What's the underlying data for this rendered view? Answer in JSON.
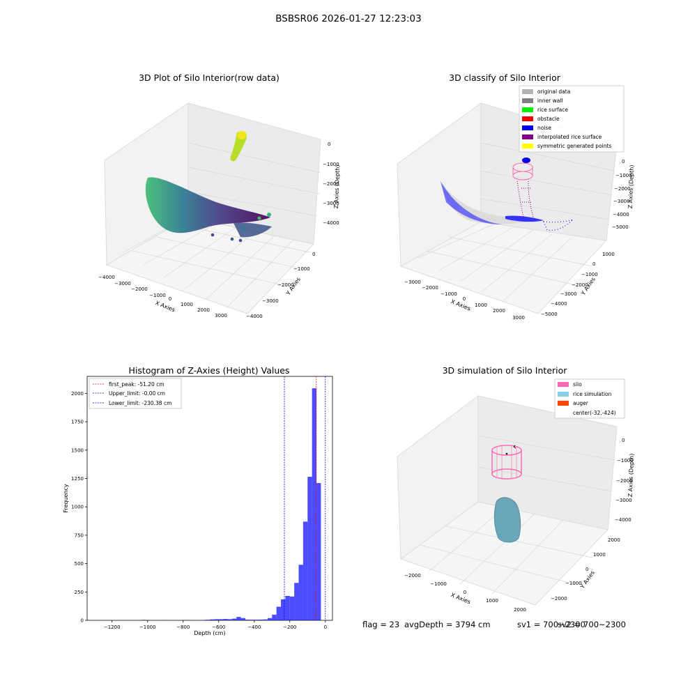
{
  "figure": {
    "suptitle": "BSBSR06 2026-01-27 12:23:03",
    "footer": {
      "flag": "flag = 23",
      "avg_depth": "avgDepth = 3794 cm",
      "sv1": "sv1 = 700~2300",
      "sv2": "sv2 = 700~2300"
    }
  },
  "panels": {
    "raw": {
      "title": "3D Plot of Silo Interior(row data)",
      "xlabel": "X Axies",
      "ylabel": "Y Axies",
      "zlabel": "Z Axies (Depth)",
      "xticks": [
        "−4000",
        "−3000",
        "−2000",
        "−1000",
        "0",
        "1000",
        "2000",
        "3000"
      ],
      "yticks": [
        "0",
        "−1000",
        "−2000",
        "−3000",
        "−4000"
      ],
      "zticks": [
        "0",
        "−1000",
        "−2000",
        "−3000",
        "−4000"
      ]
    },
    "classify": {
      "title": "3D classify of Silo Interior",
      "xlabel": "X Axies",
      "ylabel": "Y Axies",
      "zlabel": "Z Axies (Depth)",
      "xticks": [
        "−3000",
        "−2000",
        "−1000",
        "0",
        "1000",
        "2000",
        "3000"
      ],
      "yticks": [
        "1000",
        "0",
        "−1000",
        "−2000",
        "−3000",
        "−4000",
        "−5000"
      ],
      "zticks": [
        "0",
        "−1000",
        "−2000",
        "−3000",
        "−4000",
        "−5000"
      ],
      "legend": [
        {
          "label": "original data",
          "color": "#b3b3b3"
        },
        {
          "label": "inner wall",
          "color": "#808080"
        },
        {
          "label": "rice surface",
          "color": "#00ee00"
        },
        {
          "label": "obstacle",
          "color": "#ee0000"
        },
        {
          "label": "noise",
          "color": "#0000ee"
        },
        {
          "label": "interpolated rice surface",
          "color": "#800080"
        },
        {
          "label": "symmetric generated points",
          "color": "#ffff00"
        }
      ]
    },
    "simulation": {
      "title": "3D simulation of Silo Interior",
      "xlabel": "X Axies",
      "ylabel": "Y Axies",
      "zlabel": "Z Axies (Depth)",
      "xticks": [
        "−2000",
        "−1000",
        "0",
        "1000",
        "2000"
      ],
      "yticks": [
        "2000",
        "1000",
        "0",
        "−1000",
        "−2000"
      ],
      "zticks": [
        "0",
        "−1000",
        "−2000",
        "−3000",
        "−4000"
      ],
      "legend": [
        {
          "label": "silo",
          "color": "#ff69b4"
        },
        {
          "label": "rice simulation",
          "color": "#87ceeb"
        },
        {
          "label": "auger",
          "color": "#ff4500"
        },
        {
          "label": "center(-32,-424)",
          "color": ""
        }
      ]
    }
  },
  "chart_data": {
    "type": "bar",
    "title": "Histogram of Z-Axies (Height) Values",
    "xlabel": "Depth (cm)",
    "ylabel": "Frequency",
    "xlim": [
      -1340,
      40
    ],
    "ylim": [
      0,
      2150
    ],
    "xticks": [
      -1200,
      -1000,
      -800,
      -600,
      -400,
      -200,
      0
    ],
    "yticks": [
      0,
      250,
      500,
      750,
      1000,
      1250,
      1500,
      1750,
      2000
    ],
    "bar_color": "#0000ff",
    "bin_width": 25,
    "bins": [
      {
        "x": -1030,
        "v": 4
      },
      {
        "x": -925,
        "v": 3
      },
      {
        "x": -800,
        "v": 2
      },
      {
        "x": -775,
        "v": 3
      },
      {
        "x": -700,
        "v": 2
      },
      {
        "x": -675,
        "v": 5
      },
      {
        "x": -650,
        "v": 8
      },
      {
        "x": -625,
        "v": 10
      },
      {
        "x": -600,
        "v": 10
      },
      {
        "x": -575,
        "v": 12
      },
      {
        "x": -550,
        "v": 10
      },
      {
        "x": -525,
        "v": 15
      },
      {
        "x": -500,
        "v": 30
      },
      {
        "x": -475,
        "v": 20
      },
      {
        "x": -450,
        "v": 6
      },
      {
        "x": -425,
        "v": 5
      },
      {
        "x": -400,
        "v": 5
      },
      {
        "x": -375,
        "v": 6
      },
      {
        "x": -350,
        "v": 8
      },
      {
        "x": -325,
        "v": 20
      },
      {
        "x": -300,
        "v": 50
      },
      {
        "x": -275,
        "v": 120
      },
      {
        "x": -250,
        "v": 185
      },
      {
        "x": -225,
        "v": 215
      },
      {
        "x": -200,
        "v": 210
      },
      {
        "x": -175,
        "v": 330
      },
      {
        "x": -150,
        "v": 490
      },
      {
        "x": -125,
        "v": 870
      },
      {
        "x": -100,
        "v": 1265
      },
      {
        "x": -75,
        "v": 2045
      },
      {
        "x": -50,
        "v": 1210
      }
    ],
    "reference_lines": [
      {
        "label": "first_peak: -51.20 cm",
        "x": -51.2,
        "color": "#ff0000"
      },
      {
        "label": "Upper_limit: -0.00 cm",
        "x": -0.0,
        "color": "#0000ff"
      },
      {
        "label": "Lower_limit: -230.38 cm",
        "x": -230.38,
        "color": "#0000ff"
      }
    ],
    "legend_position": "upper-left"
  }
}
